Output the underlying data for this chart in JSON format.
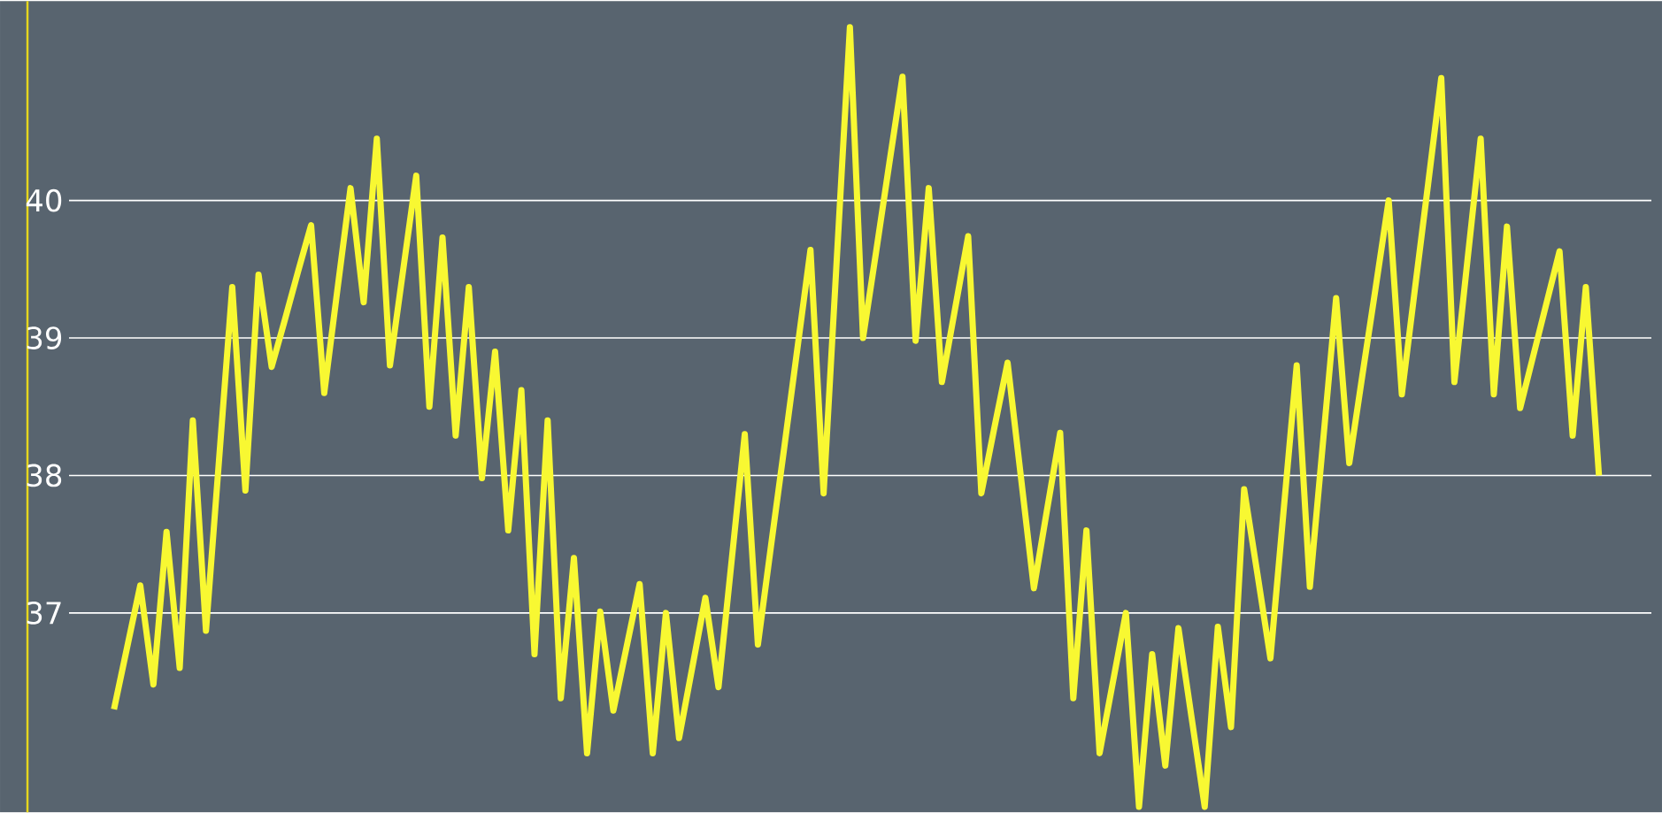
{
  "chart_data": {
    "type": "line",
    "tick_labels": "y",
    "grid": "y",
    "ylim": [
      35.55,
      41.45
    ],
    "yticks": [
      37,
      38,
      39,
      40
    ],
    "categories": [
      null,
      null,
      null,
      null,
      null,
      null,
      null,
      null,
      null,
      null,
      null,
      null,
      null,
      null,
      null,
      null,
      null,
      null,
      null,
      null,
      null,
      null,
      null,
      null,
      null,
      null,
      null,
      null,
      null,
      null,
      null,
      null,
      null,
      null,
      null,
      null,
      null,
      null,
      null,
      null,
      null,
      null,
      null,
      null,
      null,
      null,
      null,
      null,
      null,
      null,
      null,
      null,
      null,
      null,
      null,
      null,
      null,
      null,
      null,
      null,
      null,
      null,
      null,
      null,
      null,
      null,
      null,
      null,
      null,
      null,
      null,
      null,
      null,
      null,
      null,
      null,
      null,
      null,
      null,
      null,
      null,
      null,
      null,
      null,
      null,
      null,
      null,
      null,
      null,
      null,
      null,
      null,
      null,
      null,
      null,
      null,
      null,
      null,
      null,
      null,
      null,
      null,
      null,
      null,
      null,
      null,
      null,
      null,
      null,
      null,
      null,
      null,
      null,
      null
    ],
    "series": [
      {
        "color": "#f8f832",
        "values": [
          36.3,
          36.75,
          37.2,
          36.48,
          37.59,
          36.6,
          38.4,
          36.87,
          38.12,
          39.37,
          37.89,
          39.46,
          38.79,
          39.13,
          39.48,
          39.82,
          38.6,
          39.35,
          40.09,
          39.26,
          40.45,
          38.8,
          39.49,
          40.18,
          38.5,
          39.73,
          38.29,
          39.37,
          37.98,
          38.9,
          37.6,
          38.62,
          36.7,
          38.4,
          36.38,
          37.4,
          35.98,
          37.01,
          36.29,
          36.75,
          37.21,
          35.98,
          37.0,
          36.09,
          36.6,
          37.11,
          36.46,
          37.38,
          38.3,
          36.77,
          37.49,
          38.2,
          38.92,
          39.64,
          37.87,
          39.57,
          41.26,
          39.0,
          39.63,
          40.27,
          40.9,
          38.98,
          40.09,
          38.68,
          39.21,
          39.74,
          37.87,
          38.35,
          38.82,
          38.0,
          37.18,
          37.75,
          38.31,
          36.38,
          37.6,
          35.98,
          36.49,
          37.0,
          35.59,
          36.7,
          35.89,
          36.89,
          36.24,
          35.59,
          36.9,
          36.17,
          37.9,
          37.29,
          36.67,
          37.74,
          38.8,
          37.19,
          38.24,
          39.29,
          38.09,
          38.73,
          39.36,
          40.0,
          38.59,
          39.36,
          40.12,
          40.89,
          38.68,
          39.57,
          40.45,
          38.59,
          39.81,
          38.49,
          38.87,
          39.25,
          39.63,
          38.29,
          39.37,
          38.0
        ]
      }
    ]
  }
}
